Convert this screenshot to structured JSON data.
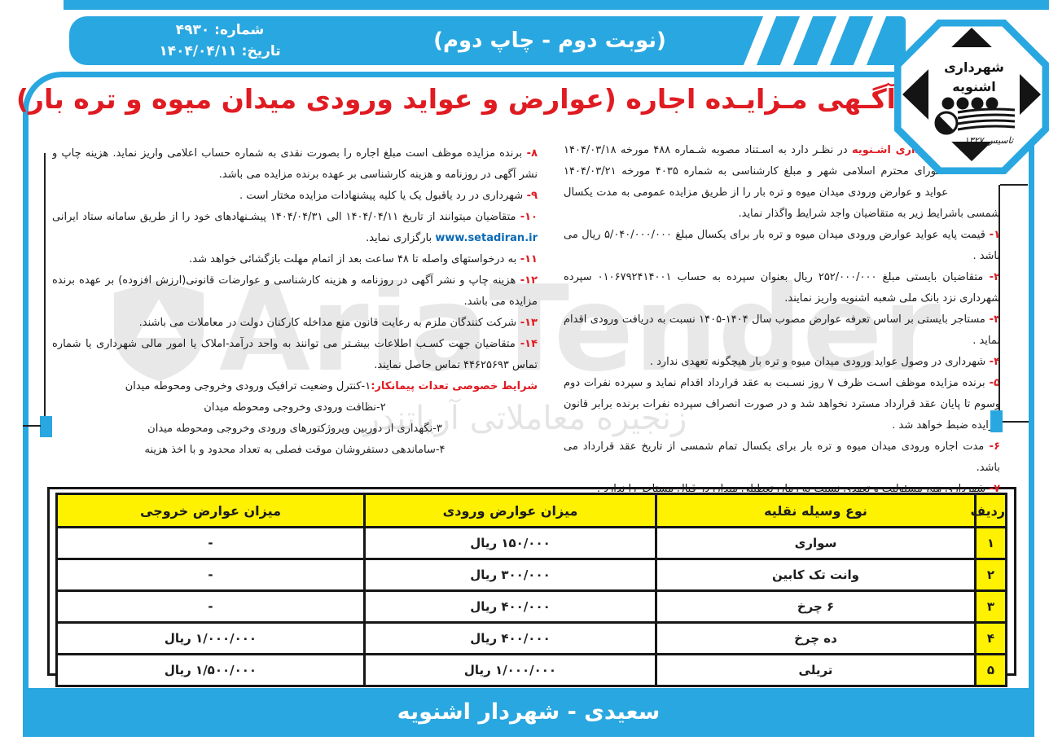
{
  "colors": {
    "accent_cyan": "#29a7e0",
    "title_red": "#e01b22",
    "table_yellow": "#fef200",
    "url_blue": "#0a6ab5"
  },
  "header": {
    "number": "شماره: ۴۹۳۰",
    "date": "تاریخ: ۱۴۰۴/۰۴/۱۱",
    "edition_note": "(نوبت دوم - چاپ دوم)"
  },
  "emblem": {
    "name_line1": "شهرداری",
    "name_line2": "اشنویه",
    "established": "تاسیس ۱۳۲۷"
  },
  "title": "آگـهی مـزایـده اجاره (عوارض و عواید ورودی میدان میوه و تره بار)",
  "intro": {
    "lead": "شـهرداری اشـنویه",
    "rest": " در نظـر دارد به اسـتناد مصوبه شـماره ۴۸۸ مورخه ۱۴۰۴/۰۳/۱۸ شـورای محترم اسلامی شهر و مبلغ کارشناسی به شماره ۴۰۳۵ مورخه ۱۴۰۴/۰۳/۲۱ عواید و عوارض ورودی میدان میوه و تره بار را از طریق مزایده عمومی به مدت یکسال شمسی باشرایط زیر به متقاضیان واجد شرایط واگذار نماید."
  },
  "right_items": [
    {
      "num": "۱- ",
      "text": "قیمت پایه عواید عوارض ورودی میدان میوه و تره بار برای یکسال مبلغ ۵/۰۴۰/۰۰۰/۰۰۰ ریال می باشد ."
    },
    {
      "num": "۲- ",
      "text": "متقاضیان بایستی مبلغ ۲۵۲/۰۰۰/۰۰۰ ریال بعنوان سپرده به حساب ۰۱۰۶۷۹۲۴۱۴۰۰۱ سپرده شهرداری نزد بانک ملی شعبه اشنویه واریز نمایند."
    },
    {
      "num": "۳- ",
      "text": "مستاجر بایستی بر اساس تعرفه عوارض مصوب سال ۱۴۰۴-۱۴۰۵ نسبت به دریافت ورودی اقدام نماید ."
    },
    {
      "num": "۴- ",
      "text": "شهرداری در وصول عواید ورودی میدان میوه و تره بار هیچگونه تعهدی ندارد ."
    },
    {
      "num": "۵- ",
      "text": "برنده مزایده موظف اسـت ظرف ۷ روز نسـبت به عقد قرارداد اقدام نماید و سپرده نفرات دوم وسوم تا پایان عقد قرارداد مسترد نخواهد شد و در صورت انصراف سپرده نفرات برنده برابر قانون مزایده ضبط خواهد شد ."
    },
    {
      "num": "۶- ",
      "text": "مدت اجاره ورودی میدان میوه و تره بار برای یکسال تمام شمسی از تاریخ عقد قرارداد می باشد."
    },
    {
      "num": "۷- ",
      "text": "شهرداری هیچ مسئولیت و تعهدی نسبت به زمان تعطیلی میدان در قبال مستاجر را ندارد ."
    }
  ],
  "left_items": [
    {
      "num": "۸- ",
      "text": "برنده مزایده موظف است مبلغ اجاره را بصورت نقدی به شماره حساب اعلامی واریز نماید. هزینه چاپ و نشر آگهی در روزنامه و هزینه کارشناسی بر عهده برنده مزایده می باشد."
    },
    {
      "num": "۹- ",
      "text": "شهرداری در رد یاقبول یک یا کلیه پیشنهادات مزایده مختار است ."
    },
    {
      "num": "۱۰- ",
      "pre": "متقاضیان میتوانند از تاریخ ۱۴۰۴/۰۴/۱۱ الی ۱۴۰۴/۰۴/۳۱ پیشـنهادهای خود را از طریق سامانه ستاد ایرانی ",
      "link": "www.setadiran.ir",
      "post": " بارگزاری نماید."
    },
    {
      "num": "۱۱- ",
      "text": "به درخواستهای واصله تا ۴۸ ساعت بعد از اتمام مهلت بازگشائی خواهد شد."
    },
    {
      "num": "۱۲- ",
      "text": "هزینه چاپ و نشر آگهی در روزنامه و هزینه کارشناسی و عوارضات قانونی(ارزش افزوده) بر عهده برنده مزایده می باشد."
    },
    {
      "num": "۱۳- ",
      "text": "شرکت کنندگان ملزم به رعایت قانون منع مداخله کارکنان دولت در معاملات می باشند."
    },
    {
      "num": "۱۴- ",
      "text": "متقاضیان جهت کسـب اطلاعات بیشـتر می توانند به واحد درآمد-املاک یا امور مالی شهرداری یا شماره تماس ۴۴۶۲۵۶۹۳ تماس حاصل نمایند."
    },
    {
      "label": "شرایط خصوصی تعدات پیمانکار:",
      "text": "۱-کنترل وضعیت ترافیک ورودی وخروجی ومحوطه میدان"
    },
    {
      "text": "۲-نظافت ورودی وخروجی ومحوطه میدان",
      "center": true
    },
    {
      "text": "۳-نگهداری از دوربین وپروژکتورهای ورودی وخروجی ومحوطه میدان",
      "center": true
    },
    {
      "text": "۴-ساماندهی دستفروشان موقت فصلی به تعداد محدود و با اخذ هزینه",
      "center": true
    }
  ],
  "table": {
    "headers": [
      "ردیف",
      "نوع وسیله نقلیه",
      "میزان عوارض ورودی",
      "میزان عوارض خروجی"
    ],
    "rows": [
      [
        "۱",
        "سواری",
        "۱۵۰/۰۰۰ ریال",
        "-"
      ],
      [
        "۲",
        "وانت تک کابین",
        "۳۰۰/۰۰۰ ریال",
        "-"
      ],
      [
        "۳",
        "۶ چرخ",
        "۴۰۰/۰۰۰ ریال",
        "-"
      ],
      [
        "۴",
        "ده چرخ",
        "۴۰۰/۰۰۰ ریال",
        "۱/۰۰۰/۰۰۰ ریال"
      ],
      [
        "۵",
        "تریلی",
        "۱/۰۰۰/۰۰۰ ریال",
        "۱/۵۰۰/۰۰۰ ریال"
      ]
    ]
  },
  "footer": "سعیدی - شهردار اشنویه",
  "watermark": {
    "latin": "AriaTender",
    "persian": "زنجیره معاملاتی آریاتندر"
  }
}
